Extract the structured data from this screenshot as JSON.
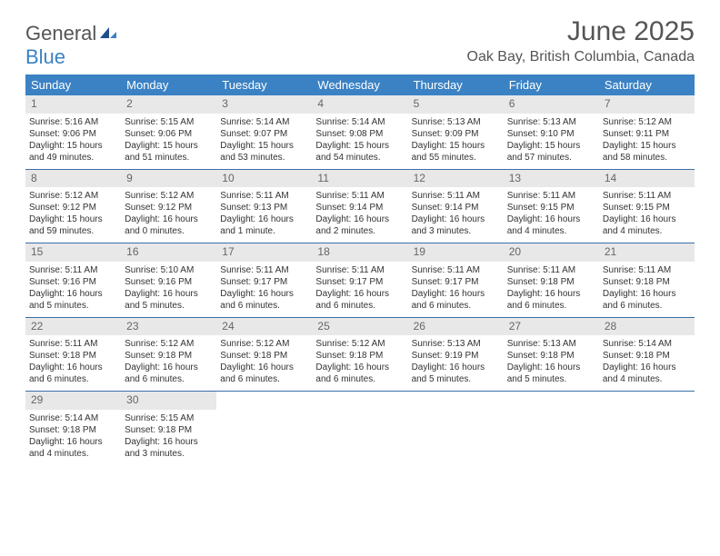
{
  "logo": {
    "text1": "General",
    "text2": "Blue"
  },
  "title": "June 2025",
  "location": "Oak Bay, British Columbia, Canada",
  "colors": {
    "header_bg": "#3b82c4",
    "row_border": "#3b6ea8",
    "daynum_bg": "#e8e8e8"
  },
  "day_headers": [
    "Sunday",
    "Monday",
    "Tuesday",
    "Wednesday",
    "Thursday",
    "Friday",
    "Saturday"
  ],
  "weeks": [
    [
      {
        "num": "1",
        "sunrise": "Sunrise: 5:16 AM",
        "sunset": "Sunset: 9:06 PM",
        "dl1": "Daylight: 15 hours",
        "dl2": "and 49 minutes."
      },
      {
        "num": "2",
        "sunrise": "Sunrise: 5:15 AM",
        "sunset": "Sunset: 9:06 PM",
        "dl1": "Daylight: 15 hours",
        "dl2": "and 51 minutes."
      },
      {
        "num": "3",
        "sunrise": "Sunrise: 5:14 AM",
        "sunset": "Sunset: 9:07 PM",
        "dl1": "Daylight: 15 hours",
        "dl2": "and 53 minutes."
      },
      {
        "num": "4",
        "sunrise": "Sunrise: 5:14 AM",
        "sunset": "Sunset: 9:08 PM",
        "dl1": "Daylight: 15 hours",
        "dl2": "and 54 minutes."
      },
      {
        "num": "5",
        "sunrise": "Sunrise: 5:13 AM",
        "sunset": "Sunset: 9:09 PM",
        "dl1": "Daylight: 15 hours",
        "dl2": "and 55 minutes."
      },
      {
        "num": "6",
        "sunrise": "Sunrise: 5:13 AM",
        "sunset": "Sunset: 9:10 PM",
        "dl1": "Daylight: 15 hours",
        "dl2": "and 57 minutes."
      },
      {
        "num": "7",
        "sunrise": "Sunrise: 5:12 AM",
        "sunset": "Sunset: 9:11 PM",
        "dl1": "Daylight: 15 hours",
        "dl2": "and 58 minutes."
      }
    ],
    [
      {
        "num": "8",
        "sunrise": "Sunrise: 5:12 AM",
        "sunset": "Sunset: 9:12 PM",
        "dl1": "Daylight: 15 hours",
        "dl2": "and 59 minutes."
      },
      {
        "num": "9",
        "sunrise": "Sunrise: 5:12 AM",
        "sunset": "Sunset: 9:12 PM",
        "dl1": "Daylight: 16 hours",
        "dl2": "and 0 minutes."
      },
      {
        "num": "10",
        "sunrise": "Sunrise: 5:11 AM",
        "sunset": "Sunset: 9:13 PM",
        "dl1": "Daylight: 16 hours",
        "dl2": "and 1 minute."
      },
      {
        "num": "11",
        "sunrise": "Sunrise: 5:11 AM",
        "sunset": "Sunset: 9:14 PM",
        "dl1": "Daylight: 16 hours",
        "dl2": "and 2 minutes."
      },
      {
        "num": "12",
        "sunrise": "Sunrise: 5:11 AM",
        "sunset": "Sunset: 9:14 PM",
        "dl1": "Daylight: 16 hours",
        "dl2": "and 3 minutes."
      },
      {
        "num": "13",
        "sunrise": "Sunrise: 5:11 AM",
        "sunset": "Sunset: 9:15 PM",
        "dl1": "Daylight: 16 hours",
        "dl2": "and 4 minutes."
      },
      {
        "num": "14",
        "sunrise": "Sunrise: 5:11 AM",
        "sunset": "Sunset: 9:15 PM",
        "dl1": "Daylight: 16 hours",
        "dl2": "and 4 minutes."
      }
    ],
    [
      {
        "num": "15",
        "sunrise": "Sunrise: 5:11 AM",
        "sunset": "Sunset: 9:16 PM",
        "dl1": "Daylight: 16 hours",
        "dl2": "and 5 minutes."
      },
      {
        "num": "16",
        "sunrise": "Sunrise: 5:10 AM",
        "sunset": "Sunset: 9:16 PM",
        "dl1": "Daylight: 16 hours",
        "dl2": "and 5 minutes."
      },
      {
        "num": "17",
        "sunrise": "Sunrise: 5:11 AM",
        "sunset": "Sunset: 9:17 PM",
        "dl1": "Daylight: 16 hours",
        "dl2": "and 6 minutes."
      },
      {
        "num": "18",
        "sunrise": "Sunrise: 5:11 AM",
        "sunset": "Sunset: 9:17 PM",
        "dl1": "Daylight: 16 hours",
        "dl2": "and 6 minutes."
      },
      {
        "num": "19",
        "sunrise": "Sunrise: 5:11 AM",
        "sunset": "Sunset: 9:17 PM",
        "dl1": "Daylight: 16 hours",
        "dl2": "and 6 minutes."
      },
      {
        "num": "20",
        "sunrise": "Sunrise: 5:11 AM",
        "sunset": "Sunset: 9:18 PM",
        "dl1": "Daylight: 16 hours",
        "dl2": "and 6 minutes."
      },
      {
        "num": "21",
        "sunrise": "Sunrise: 5:11 AM",
        "sunset": "Sunset: 9:18 PM",
        "dl1": "Daylight: 16 hours",
        "dl2": "and 6 minutes."
      }
    ],
    [
      {
        "num": "22",
        "sunrise": "Sunrise: 5:11 AM",
        "sunset": "Sunset: 9:18 PM",
        "dl1": "Daylight: 16 hours",
        "dl2": "and 6 minutes."
      },
      {
        "num": "23",
        "sunrise": "Sunrise: 5:12 AM",
        "sunset": "Sunset: 9:18 PM",
        "dl1": "Daylight: 16 hours",
        "dl2": "and 6 minutes."
      },
      {
        "num": "24",
        "sunrise": "Sunrise: 5:12 AM",
        "sunset": "Sunset: 9:18 PM",
        "dl1": "Daylight: 16 hours",
        "dl2": "and 6 minutes."
      },
      {
        "num": "25",
        "sunrise": "Sunrise: 5:12 AM",
        "sunset": "Sunset: 9:18 PM",
        "dl1": "Daylight: 16 hours",
        "dl2": "and 6 minutes."
      },
      {
        "num": "26",
        "sunrise": "Sunrise: 5:13 AM",
        "sunset": "Sunset: 9:19 PM",
        "dl1": "Daylight: 16 hours",
        "dl2": "and 5 minutes."
      },
      {
        "num": "27",
        "sunrise": "Sunrise: 5:13 AM",
        "sunset": "Sunset: 9:18 PM",
        "dl1": "Daylight: 16 hours",
        "dl2": "and 5 minutes."
      },
      {
        "num": "28",
        "sunrise": "Sunrise: 5:14 AM",
        "sunset": "Sunset: 9:18 PM",
        "dl1": "Daylight: 16 hours",
        "dl2": "and 4 minutes."
      }
    ],
    [
      {
        "num": "29",
        "sunrise": "Sunrise: 5:14 AM",
        "sunset": "Sunset: 9:18 PM",
        "dl1": "Daylight: 16 hours",
        "dl2": "and 4 minutes."
      },
      {
        "num": "30",
        "sunrise": "Sunrise: 5:15 AM",
        "sunset": "Sunset: 9:18 PM",
        "dl1": "Daylight: 16 hours",
        "dl2": "and 3 minutes."
      },
      null,
      null,
      null,
      null,
      null
    ]
  ]
}
